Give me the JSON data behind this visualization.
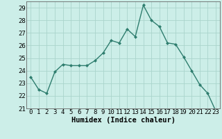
{
  "x": [
    0,
    1,
    2,
    3,
    4,
    5,
    6,
    7,
    8,
    9,
    10,
    11,
    12,
    13,
    14,
    15,
    16,
    17,
    18,
    19,
    20,
    21,
    22,
    23
  ],
  "y": [
    23.5,
    22.5,
    22.2,
    23.9,
    24.5,
    24.4,
    24.4,
    24.4,
    24.8,
    25.4,
    26.4,
    26.2,
    27.3,
    26.7,
    29.2,
    28.0,
    27.5,
    26.2,
    26.1,
    25.1,
    24.0,
    22.9,
    22.2,
    20.8
  ],
  "line_color": "#2e7d6e",
  "marker": "D",
  "marker_size": 2.0,
  "bg_color": "#cceee8",
  "grid_color": "#aad4cc",
  "xlabel": "Humidex (Indice chaleur)",
  "ylim": [
    21,
    29.5
  ],
  "xlim": [
    -0.5,
    23.5
  ],
  "yticks": [
    21,
    22,
    23,
    24,
    25,
    26,
    27,
    28,
    29
  ],
  "xticks": [
    0,
    1,
    2,
    3,
    4,
    5,
    6,
    7,
    8,
    9,
    10,
    11,
    12,
    13,
    14,
    15,
    16,
    17,
    18,
    19,
    20,
    21,
    22,
    23
  ],
  "tick_fontsize": 6.5,
  "xlabel_fontsize": 7.5,
  "line_width": 1.0
}
